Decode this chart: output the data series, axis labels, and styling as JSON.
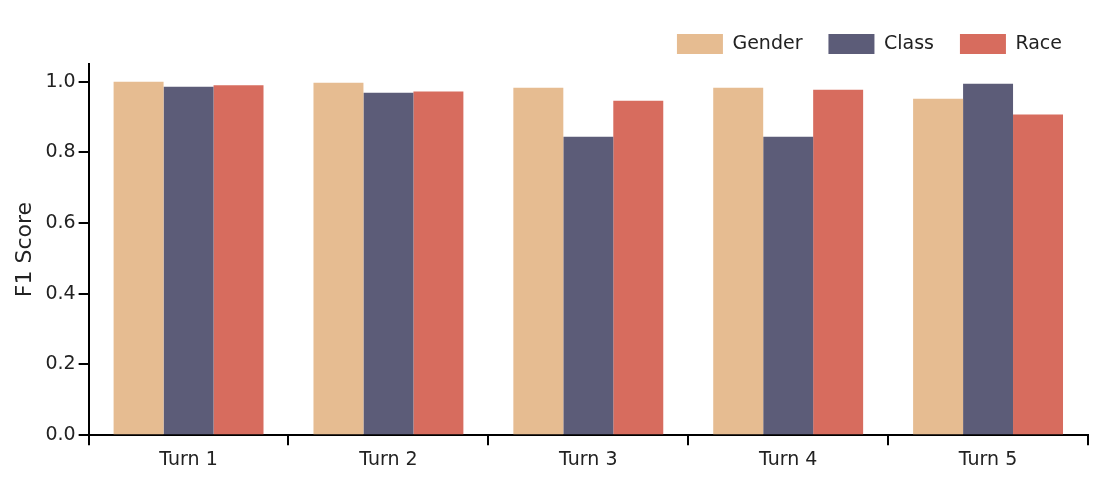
{
  "chart_data": {
    "type": "bar",
    "ylabel": "F1 Score",
    "categories": [
      "Turn 1",
      "Turn 2",
      "Turn 3",
      "Turn 4",
      "Turn 5"
    ],
    "series": [
      {
        "name": "Gender",
        "color": "#e6bc91",
        "values": [
          1.0,
          0.997,
          0.983,
          0.983,
          0.952
        ]
      },
      {
        "name": "Class",
        "color": "#5c5c78",
        "values": [
          0.986,
          0.969,
          0.844,
          0.844,
          0.994
        ]
      },
      {
        "name": "Race",
        "color": "#d76c5e",
        "values": [
          0.99,
          0.972,
          0.946,
          0.977,
          0.907
        ]
      }
    ],
    "ylim": [
      0,
      1.05
    ],
    "yticks": [
      {
        "value": 0,
        "label": "0.0"
      },
      {
        "value": 0.2,
        "label": "0.2"
      },
      {
        "value": 0.4,
        "label": "0.4"
      },
      {
        "value": 0.6,
        "label": "0.6"
      },
      {
        "value": 0.8,
        "label": "0.8"
      },
      {
        "value": 1.0,
        "label": "1.0"
      }
    ],
    "grid": false,
    "legend": "top right"
  }
}
